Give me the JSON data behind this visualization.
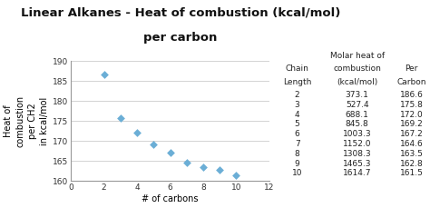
{
  "title_line1": "Linear Alkanes - Heat of combustion (kcal/mol)",
  "title_line2": "per carbon",
  "xlabel": "# of carbons",
  "ylabel": "Heat of\ncombustion\nper CH2\nin kcal/mol",
  "x": [
    2,
    3,
    4,
    5,
    6,
    7,
    8,
    9,
    10
  ],
  "y": [
    186.6,
    175.8,
    172.0,
    169.2,
    167.2,
    164.6,
    163.5,
    162.8,
    161.5
  ],
  "xlim": [
    0,
    12
  ],
  "ylim": [
    160.0,
    190.0
  ],
  "yticks": [
    160.0,
    165.0,
    170.0,
    175.0,
    180.0,
    185.0,
    190.0
  ],
  "xticks": [
    0,
    2,
    4,
    6,
    8,
    10,
    12
  ],
  "marker_color": "#6baed6",
  "bg_color": "#ffffff",
  "plot_bg": "#ffffff",
  "table_data": [
    [
      2,
      "373.1",
      "186.6"
    ],
    [
      3,
      "527.4",
      "175.8"
    ],
    [
      4,
      "688.1",
      "172.0"
    ],
    [
      5,
      "845.8",
      "169.2"
    ],
    [
      6,
      "1003.3",
      "167.2"
    ],
    [
      7,
      "1152.0",
      "164.6"
    ],
    [
      8,
      "1308.3",
      "163.5"
    ],
    [
      9,
      "1465.3",
      "162.8"
    ],
    [
      10,
      "1614.7",
      "161.5"
    ]
  ],
  "col_headers_line1": [
    "",
    "Molar heat of",
    ""
  ],
  "col_headers_line2": [
    "Chain",
    "combustion",
    "Per"
  ],
  "col_headers_line3": [
    "Length",
    "(kcal/mol)",
    "Carbon"
  ],
  "title_fontsize": 9.5,
  "axis_label_fontsize": 7.0,
  "tick_fontsize": 6.5,
  "table_fontsize": 6.5
}
